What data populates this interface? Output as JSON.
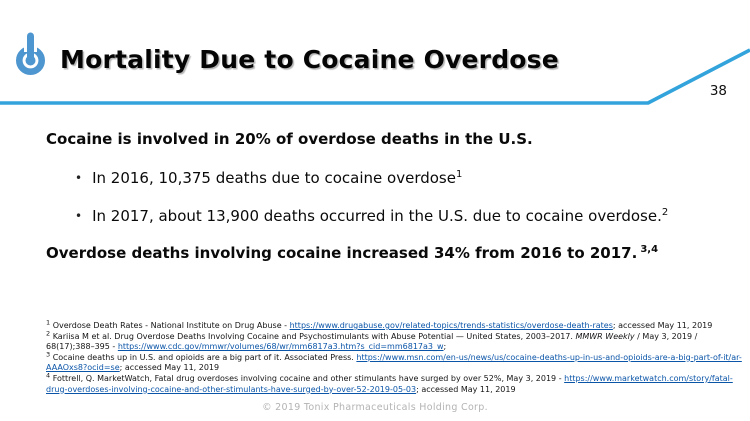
{
  "header": {
    "title": "Mortality Due to Cocaine Overdose",
    "page_number": "38",
    "accent_color": "#33A3DC",
    "logo_color": "#4E96D0",
    "logo_icon": "power-icon"
  },
  "body": {
    "bullet_glyph": "•",
    "intro": "Cocaine is involved in 20% of overdose deaths in the U.S.",
    "bullets": [
      {
        "text": "In 2016, 10,375 deaths due to cocaine overdose",
        "sup": "1"
      },
      {
        "text": "In 2017, about 13,900 deaths occurred in the U.S. due to cocaine overdose.",
        "sup": "2"
      }
    ],
    "conclusion": {
      "text": "Overdose deaths involving cocaine increased 34% from 2016 to 2017.",
      "sup": "3,4"
    }
  },
  "footnotes": [
    {
      "marker": "1",
      "segments": [
        {
          "type": "text",
          "text": "Overdose Death Rates - National Institute on Drug Abuse - "
        },
        {
          "type": "link",
          "text": "https://www.drugabuse.gov/related-topics/trends-statistics/overdose-death-rates"
        },
        {
          "type": "text",
          "text": ";  accessed May 11, 2019"
        }
      ]
    },
    {
      "marker": "2",
      "segments": [
        {
          "type": "text",
          "text": "Kariisa M et al. Drug Overdose Deaths Involving Cocaine and Psychostimulants with Abuse Potential — United States, 2003–2017. "
        },
        {
          "type": "italic",
          "text": "MMWR Weekly"
        },
        {
          "type": "text",
          "text": " / May 3, 2019 / 68(17);388–395 - "
        },
        {
          "type": "link",
          "text": "https://www.cdc.gov/mmwr/volumes/68/wr/mm6817a3.htm?s_cid=mm6817a3_w"
        },
        {
          "type": "text",
          "text": ";"
        }
      ]
    },
    {
      "marker": "3",
      "segments": [
        {
          "type": "text",
          "text": "Cocaine deaths up in U.S. and opioids are a big part of it.  Associated Press. "
        },
        {
          "type": "link",
          "text": "https://www.msn.com/en-us/news/us/cocaine-deaths-up-in-us-and-opioids-are-a-big-part-of-it/ar-AAAOxs8?ocid=se"
        },
        {
          "type": "text",
          "text": ";  accessed May 11, 2019"
        }
      ]
    },
    {
      "marker": "4",
      "segments": [
        {
          "type": "text",
          "text": "Fottrell, Q. MarketWatch, Fatal drug overdoses involving cocaine and other stimulants have surged by over 52%, May 3, 2019 - "
        },
        {
          "type": "link",
          "text": "https://www.marketwatch.com/story/fatal-drug-overdoses-involving-cocaine-and-other-stimulants-have-surged-by-over-52-2019-05-03"
        },
        {
          "type": "text",
          "text": ";  accessed May 11, 2019"
        }
      ]
    }
  ],
  "footer": {
    "copyright": "© 2019 Tonix Pharmaceuticals Holding Corp."
  }
}
